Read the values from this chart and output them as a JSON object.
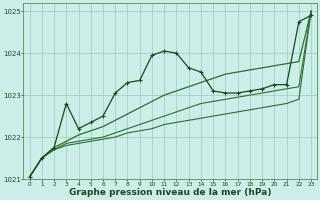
{
  "background_color": "#cceee8",
  "grid_color": "#99ccbb",
  "xlabel": "Graphe pression niveau de la mer (hPa)",
  "xlabel_fontsize": 6.5,
  "xlim": [
    -0.5,
    23.5
  ],
  "ylim": [
    1021.0,
    1025.2
  ],
  "yticks": [
    1021,
    1022,
    1023,
    1024,
    1025
  ],
  "xticks": [
    0,
    1,
    2,
    3,
    4,
    5,
    6,
    7,
    8,
    9,
    10,
    11,
    12,
    13,
    14,
    15,
    16,
    17,
    18,
    19,
    20,
    21,
    22,
    23
  ],
  "series": [
    {
      "x": [
        0,
        1,
        2,
        3,
        4,
        5,
        6,
        7,
        8,
        9,
        10,
        11,
        12,
        13,
        14,
        15,
        16,
        17,
        18,
        19,
        20,
        21,
        22,
        23
      ],
      "y": [
        1021.05,
        1021.5,
        1021.7,
        1021.8,
        1021.85,
        1021.9,
        1021.95,
        1022.0,
        1022.1,
        1022.15,
        1022.2,
        1022.3,
        1022.35,
        1022.4,
        1022.45,
        1022.5,
        1022.55,
        1022.6,
        1022.65,
        1022.7,
        1022.75,
        1022.8,
        1022.9,
        1025.0
      ],
      "color": "#2d6e2d",
      "lw": 0.8,
      "marker": null
    },
    {
      "x": [
        0,
        1,
        2,
        3,
        4,
        5,
        6,
        7,
        8,
        9,
        10,
        11,
        12,
        13,
        14,
        15,
        16,
        17,
        18,
        19,
        20,
        21,
        22,
        23
      ],
      "y": [
        1021.05,
        1021.5,
        1021.7,
        1021.85,
        1021.9,
        1021.95,
        1022.0,
        1022.1,
        1022.2,
        1022.3,
        1022.4,
        1022.5,
        1022.6,
        1022.7,
        1022.8,
        1022.85,
        1022.9,
        1022.95,
        1023.0,
        1023.05,
        1023.1,
        1023.15,
        1023.2,
        1025.0
      ],
      "color": "#2d6e2d",
      "lw": 0.8,
      "marker": null
    },
    {
      "x": [
        0,
        1,
        2,
        3,
        4,
        5,
        6,
        7,
        8,
        9,
        10,
        11,
        12,
        13,
        14,
        15,
        16,
        17,
        18,
        19,
        20,
        21,
        22,
        23
      ],
      "y": [
        1021.05,
        1021.5,
        1021.75,
        1021.9,
        1022.05,
        1022.15,
        1022.25,
        1022.4,
        1022.55,
        1022.7,
        1022.85,
        1023.0,
        1023.1,
        1023.2,
        1023.3,
        1023.4,
        1023.5,
        1023.55,
        1023.6,
        1023.65,
        1023.7,
        1023.75,
        1023.8,
        1025.0
      ],
      "color": "#2d6e2d",
      "lw": 0.9,
      "marker": null
    },
    {
      "x": [
        0,
        1,
        2,
        3,
        4,
        5,
        6,
        7,
        8,
        9,
        10,
        11,
        12,
        13,
        14,
        15,
        16,
        17,
        18,
        19,
        20,
        21,
        22,
        23
      ],
      "y": [
        1021.05,
        1021.5,
        1021.75,
        1022.8,
        1022.2,
        1022.35,
        1022.5,
        1023.05,
        1023.3,
        1023.35,
        1023.95,
        1024.05,
        1024.0,
        1023.65,
        1023.55,
        1023.1,
        1023.05,
        1023.05,
        1023.1,
        1023.15,
        1023.25,
        1023.25,
        1024.75,
        1024.9
      ],
      "color": "#1a4a1a",
      "lw": 0.9,
      "marker": "+",
      "markersize": 3.5
    }
  ]
}
